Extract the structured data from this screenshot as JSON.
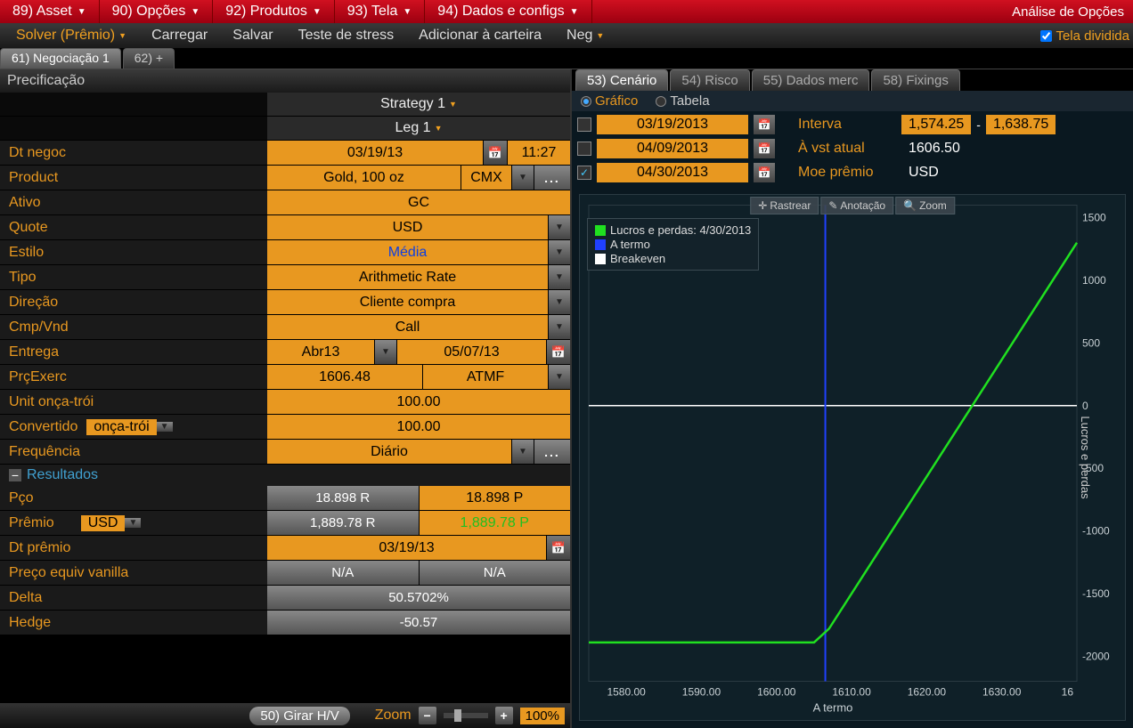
{
  "topbar": {
    "items": [
      {
        "label": "89) Asset"
      },
      {
        "label": "90) Opções"
      },
      {
        "label": "92) Produtos"
      },
      {
        "label": "93) Tela"
      },
      {
        "label": "94) Dados e configs"
      }
    ],
    "right": "Análise de Opções"
  },
  "menubar": {
    "items": [
      {
        "label": "Solver (Prêmio)",
        "active": true,
        "dd": true
      },
      {
        "label": "Carregar"
      },
      {
        "label": "Salvar"
      },
      {
        "label": "Teste de stress"
      },
      {
        "label": "Adicionar à carteira"
      },
      {
        "label": "Neg",
        "dd": true
      }
    ],
    "split": "Tela dividida"
  },
  "tabs": {
    "active": "61) Negociação 1",
    "add": "62) +"
  },
  "pricing": {
    "title": "Precificação",
    "strategy": "Strategy 1",
    "leg": "Leg 1",
    "rows": {
      "dt_negoc": {
        "label": "Dt negoc",
        "date": "03/19/13",
        "time": "11:27"
      },
      "product": {
        "label": "Product",
        "name": "Gold, 100 oz",
        "exch": "CMX"
      },
      "ativo": {
        "label": "Ativo",
        "value": "GC"
      },
      "quote": {
        "label": "Quote",
        "value": "USD"
      },
      "estilo": {
        "label": "Estilo",
        "value": "Média"
      },
      "tipo": {
        "label": "Tipo",
        "value": "Arithmetic Rate"
      },
      "direcao": {
        "label": "Direção",
        "value": "Cliente compra"
      },
      "cmpvnd": {
        "label": "Cmp/Vnd",
        "value": "Call"
      },
      "entrega": {
        "label": "Entrega",
        "month": "Abr13",
        "date": "05/07/13"
      },
      "prcexerc": {
        "label": "PrçExerc",
        "price": "1606.48",
        "type": "ATMF"
      },
      "unit": {
        "label": "Unit onça-trói",
        "value": "100.00"
      },
      "convertido": {
        "label": "Convertido",
        "unit": "onça-trói",
        "value": "100.00"
      },
      "freq": {
        "label": "Frequência",
        "value": "Diário"
      }
    },
    "results": {
      "header": "Resultados",
      "pco": {
        "label": "Pço",
        "r": "18.898 R",
        "p": "18.898 P"
      },
      "premio": {
        "label": "Prêmio",
        "ccy": "USD",
        "r": "1,889.78 R",
        "p": "1,889.78 P"
      },
      "dtpremio": {
        "label": "Dt prêmio",
        "value": "03/19/13"
      },
      "pev": {
        "label": "Preço equiv vanilla",
        "r": "N/A",
        "p": "N/A"
      },
      "delta": {
        "label": "Delta",
        "value": "50.5702%"
      },
      "hedge": {
        "label": "Hedge",
        "value": "-50.57"
      }
    }
  },
  "footer": {
    "girar": "50) Girar H/V",
    "zoom": "Zoom",
    "pct": "100%"
  },
  "right_panel": {
    "tabs": [
      {
        "label": "53) Cenário",
        "active": true
      },
      {
        "label": "54) Risco"
      },
      {
        "label": "55) Dados merc"
      },
      {
        "label": "58) Fixings"
      }
    ],
    "view": {
      "grafico": "Gráfico",
      "tabela": "Tabela"
    },
    "scenarios": [
      {
        "checked": false,
        "date": "03/19/2013",
        "lbl": "Interva",
        "v1": "1,574.25",
        "v2": "1,638.75"
      },
      {
        "checked": false,
        "date": "04/09/2013",
        "lbl": "À vst atual",
        "v": "1606.50"
      },
      {
        "checked": true,
        "date": "04/30/2013",
        "lbl": "Moe prêmio",
        "v": "USD"
      }
    ]
  },
  "chart": {
    "tools": {
      "rastrear": "Rastrear",
      "anotacao": "Anotação",
      "zoom": "Zoom"
    },
    "legend": {
      "pl": "Lucros e perdas: 4/30/2013",
      "termo": "A termo",
      "breakeven": "Breakeven"
    },
    "colors": {
      "pl": "#20e020",
      "termo": "#2040ff",
      "breakeven": "#ffffff",
      "bg": "#0f2028",
      "grid": "#2a3a42",
      "text": "#c8d0d4"
    },
    "xlim": [
      1575,
      1640
    ],
    "ylim": [
      -2200,
      1600
    ],
    "xticks": [
      1580,
      1590,
      1600,
      1610,
      1620,
      1630
    ],
    "xtick_last": "16",
    "yticks": [
      -2000,
      -1500,
      -1000,
      -500,
      0,
      500,
      1000,
      1500
    ],
    "xlabel": "A termo",
    "ylabel": "Lucros e perdas",
    "pl_line": [
      {
        "x": 1575,
        "y": -1890
      },
      {
        "x": 1605,
        "y": -1890
      },
      {
        "x": 1607,
        "y": -1780
      },
      {
        "x": 1640,
        "y": 1300
      }
    ],
    "termo_x": 1606.5,
    "breakeven_y": 0
  }
}
